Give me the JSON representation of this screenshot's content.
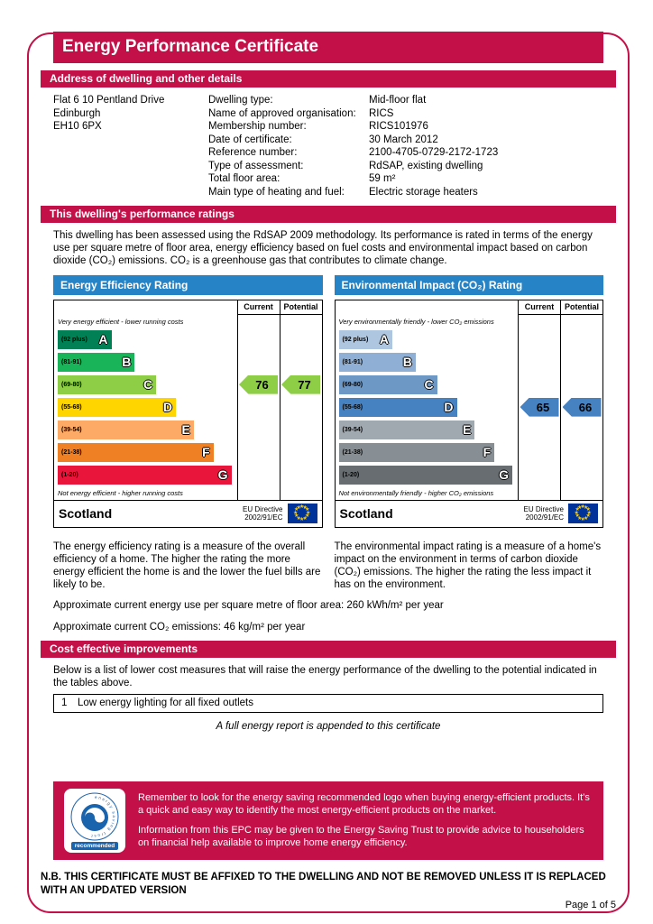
{
  "colors": {
    "accent_crimson": "#c31048",
    "header_blue": "#2683c5",
    "flag_blue": "#003399",
    "star_yellow": "#ffcc00",
    "logo_blue": "#1a63ad"
  },
  "page": {
    "title": "Energy Performance Certificate",
    "notice": "N.B. THIS CERTIFICATE MUST BE AFFIXED TO THE DWELLING AND NOT BE REMOVED UNLESS IT IS REPLACED WITH AN UPDATED VERSION",
    "page_number": "Page 1 of 5"
  },
  "address": {
    "header": "Address of dwelling and other details",
    "lines": [
      "Flat 6 10 Pentland Drive",
      "Edinburgh",
      "EH10 6PX"
    ],
    "details": [
      {
        "label": "Dwelling type:",
        "value": "Mid-floor flat"
      },
      {
        "label": "Name of approved organisation:",
        "value": "RICS"
      },
      {
        "label": "Membership number:",
        "value": "RICS101976"
      },
      {
        "label": "Date of certificate:",
        "value": "30 March 2012"
      },
      {
        "label": "Reference number:",
        "value": "2100-4705-0729-2172-1723"
      },
      {
        "label": "Type of assessment:",
        "value": "RdSAP, existing dwelling"
      },
      {
        "label": "Total floor area:",
        "value": "59 m²"
      },
      {
        "label": "Main type of heating and fuel:",
        "value": "Electric storage heaters"
      }
    ]
  },
  "performance": {
    "header": "This dwelling's performance ratings",
    "intro": "This dwelling has been assessed using the RdSAP 2009 methodology. Its performance is rated in terms of the energy use per square metre of floor area, energy efficiency based on fuel costs and environmental impact based on carbon dioxide (CO₂) emissions. CO₂ is a greenhouse gas that contributes to climate change.",
    "energy_description": "The energy efficiency rating is a measure of the overall efficiency of a home. The higher the rating the more energy efficient the home is and the lower the fuel bills are likely to be.",
    "environment_description": "The environmental impact rating is a measure of a home's impact on the environment in terms of carbon dioxide (CO₂) emissions. The higher the rating the less impact it has on the environment.",
    "energy_use_line": "Approximate current energy use per square metre of floor area: 260 kWh/m² per year",
    "co2_line": "Approximate current CO₂ emissions: 46 kg/m² per year"
  },
  "charts": [
    {
      "type": "epc-rating-bar",
      "title": "Energy Efficiency Rating",
      "col_current": "Current",
      "col_potential": "Potential",
      "top_note": "Very energy efficient - lower running costs",
      "bottom_note": "Not energy efficient - higher running costs",
      "region": "Scotland",
      "directive_line1": "EU Directive",
      "directive_line2": "2002/91/EC",
      "current": 76,
      "potential": 77,
      "current_band_index": 2,
      "arrow_color": "#8dce46",
      "bands": [
        {
          "letter": "A",
          "range": "(92 plus)",
          "color": "#008054",
          "width_pct": 30
        },
        {
          "letter": "B",
          "range": "(81-91)",
          "color": "#19b459",
          "width_pct": 43
        },
        {
          "letter": "C",
          "range": "(69-80)",
          "color": "#8dce46",
          "width_pct": 55
        },
        {
          "letter": "D",
          "range": "(55-68)",
          "color": "#ffd500",
          "width_pct": 66
        },
        {
          "letter": "E",
          "range": "(39-54)",
          "color": "#fcaa65",
          "width_pct": 76
        },
        {
          "letter": "F",
          "range": "(21-38)",
          "color": "#ef8023",
          "width_pct": 87
        },
        {
          "letter": "G",
          "range": "(1-20)",
          "color": "#e9153b",
          "width_pct": 97
        }
      ]
    },
    {
      "type": "epc-rating-bar",
      "title": "Environmental Impact (CO₂) Rating",
      "col_current": "Current",
      "col_potential": "Potential",
      "top_note": "Very environmentally friendly - lower CO₂ emissions",
      "bottom_note": "Not environmentally friendly - higher CO₂ emissions",
      "region": "Scotland",
      "directive_line1": "EU Directive",
      "directive_line2": "2002/91/EC",
      "current": 65,
      "potential": 66,
      "current_band_index": 3,
      "arrow_color": "#4682c1",
      "bands": [
        {
          "letter": "A",
          "range": "(92 plus)",
          "color": "#aec6e0",
          "width_pct": 30
        },
        {
          "letter": "B",
          "range": "(81-91)",
          "color": "#8fb0d4",
          "width_pct": 43
        },
        {
          "letter": "C",
          "range": "(69-80)",
          "color": "#6d98c6",
          "width_pct": 55
        },
        {
          "letter": "D",
          "range": "(55-68)",
          "color": "#4682c1",
          "width_pct": 66
        },
        {
          "letter": "E",
          "range": "(39-54)",
          "color": "#a0a9af",
          "width_pct": 76
        },
        {
          "letter": "F",
          "range": "(21-38)",
          "color": "#878f94",
          "width_pct": 87
        },
        {
          "letter": "G",
          "range": "(1-20)",
          "color": "#676d70",
          "width_pct": 97
        }
      ]
    }
  ],
  "improvements": {
    "header": "Cost effective improvements",
    "intro": "Below is a list of lower cost measures that will raise the energy performance of the dwelling to the potential indicated in the tables above.",
    "items": [
      {
        "number": "1",
        "text": "Low energy lighting for all fixed outlets"
      }
    ],
    "appended_note": "A full energy report is appended to this certificate"
  },
  "footer_banner": {
    "logo": {
      "ring_text": "energy saving trust",
      "label": "recommended"
    },
    "paragraphs": [
      "Remember to look for the energy saving recommended logo when buying energy-efficient products. It's a quick and easy way to identify the most energy-efficient products on the market.",
      "Information from this EPC may be given to the Energy Saving Trust to provide advice to householders on financial help available to improve home energy efficiency."
    ]
  }
}
